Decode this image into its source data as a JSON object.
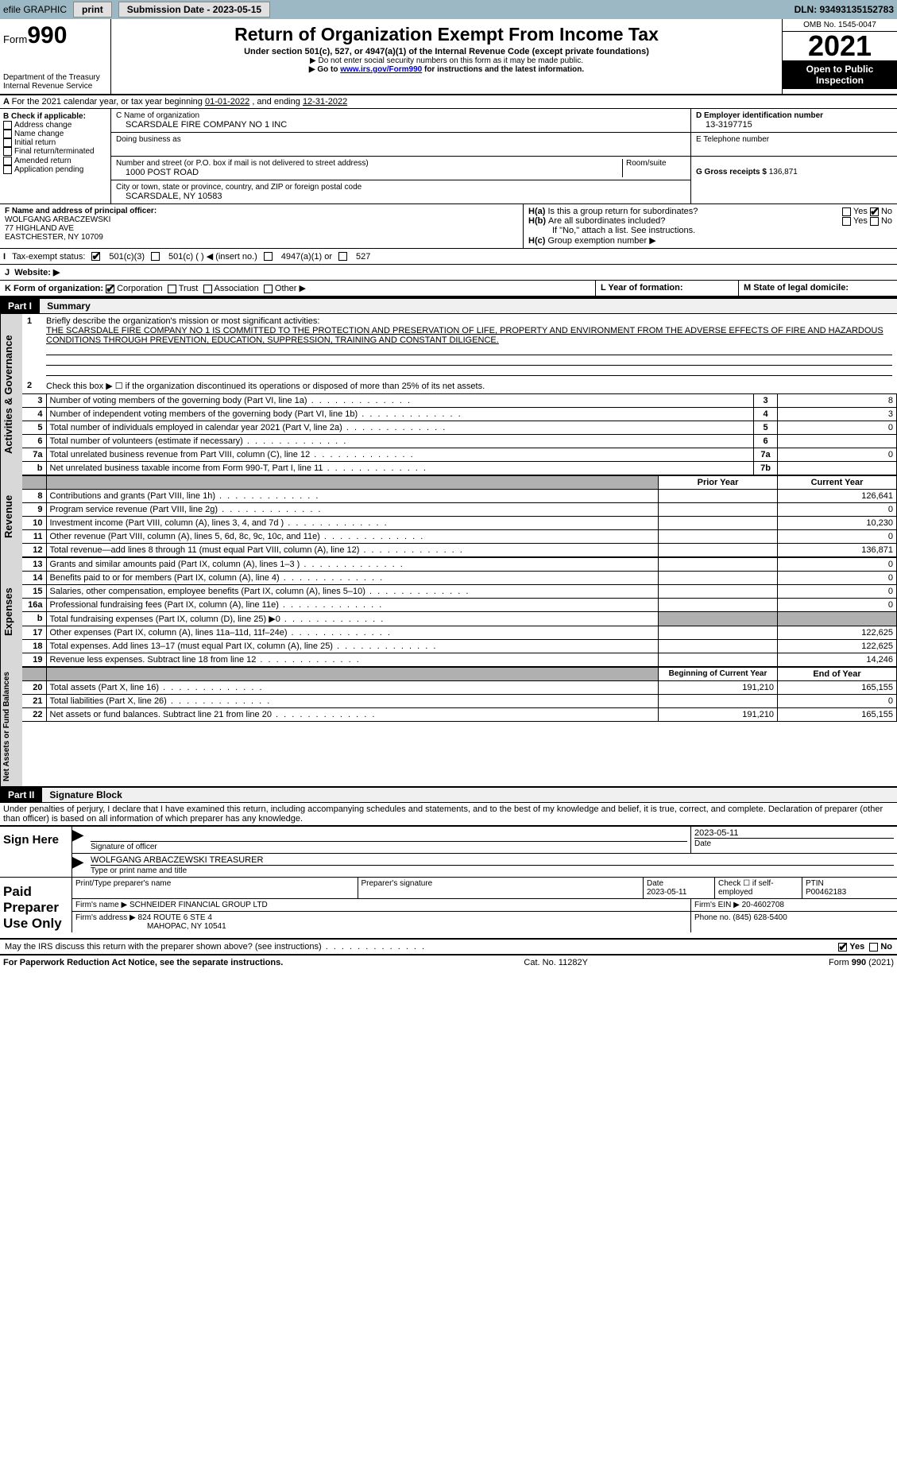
{
  "topbar": {
    "efile": "efile GRAPHIC",
    "print": "print",
    "subdate_label": "Submission Date - 2023-05-15",
    "dln": "DLN: 93493135152783"
  },
  "header": {
    "form_prefix": "Form",
    "form_num": "990",
    "title": "Return of Organization Exempt From Income Tax",
    "subtitle": "Under section 501(c), 527, or 4947(a)(1) of the Internal Revenue Code (except private foundations)",
    "note1": "▶ Do not enter social security numbers on this form as it may be made public.",
    "note2_pre": "▶ Go to ",
    "note2_link": "www.irs.gov/Form990",
    "note2_post": " for instructions and the latest information.",
    "dept": "Department of the Treasury",
    "irs": "Internal Revenue Service",
    "omb": "OMB No. 1545-0047",
    "year": "2021",
    "inspect": "Open to Public Inspection"
  },
  "sectionA": {
    "text_pre": "For the 2021 calendar year, or tax year beginning ",
    "begin": "01-01-2022",
    "mid": " , and ending ",
    "end": "12-31-2022"
  },
  "boxB": {
    "label": "B Check if applicable:",
    "items": [
      "Address change",
      "Name change",
      "Initial return",
      "Final return/terminated",
      "Amended return",
      "Application pending"
    ]
  },
  "boxC": {
    "name_label": "C Name of organization",
    "name": "SCARSDALE FIRE COMPANY NO 1 INC",
    "dba_label": "Doing business as",
    "street_label": "Number and street (or P.O. box if mail is not delivered to street address)",
    "room_label": "Room/suite",
    "street": "1000 POST ROAD",
    "city_label": "City or town, state or province, country, and ZIP or foreign postal code",
    "city": "SCARSDALE, NY  10583"
  },
  "boxD": {
    "label": "D Employer identification number",
    "value": "13-3197715"
  },
  "boxE": {
    "label": "E Telephone number",
    "value": ""
  },
  "boxG": {
    "label": "G Gross receipts $",
    "value": "136,871"
  },
  "boxF": {
    "label": "F  Name and address of principal officer:",
    "name": "WOLFGANG ARBACZEWSKI",
    "addr1": "77 HIGHLAND AVE",
    "addr2": "EASTCHESTER, NY  10709"
  },
  "boxH": {
    "a": "Is this a group return for subordinates?",
    "b": "Are all subordinates included?",
    "b_note": "If \"No,\" attach a list. See instructions.",
    "c": "Group exemption number ▶",
    "yes": "Yes",
    "no": "No"
  },
  "boxI": {
    "label": "Tax-exempt status:",
    "opts": [
      "501(c)(3)",
      "501(c) (   ) ◀ (insert no.)",
      "4947(a)(1) or",
      "527"
    ]
  },
  "boxJ": {
    "label": "Website: ▶"
  },
  "boxK": {
    "label": "K Form of organization:",
    "opts": [
      "Corporation",
      "Trust",
      "Association",
      "Other ▶"
    ]
  },
  "boxL": {
    "label": "L Year of formation:"
  },
  "boxM": {
    "label": "M State of legal domicile:"
  },
  "part1": {
    "hdr": "Part I",
    "title": "Summary",
    "line1_label": "Briefly describe the organization's mission or most significant activities:",
    "mission": "THE SCARSDALE FIRE COMPANY NO 1 IS COMMITTED TO THE PROTECTION AND PRESERVATION OF LIFE, PROPERTY AND ENVIRONMENT FROM THE ADVERSE EFFECTS OF FIRE AND HAZARDOUS CONDITIONS THROUGH PREVENTION, EDUCATION, SUPPRESSION, TRAINING AND CONSTANT DILIGENCE.",
    "line2": "Check this box ▶ ☐ if the organization discontinued its operations or disposed of more than 25% of its net assets.",
    "vlab_gov": "Activities & Governance",
    "vlab_rev": "Revenue",
    "vlab_exp": "Expenses",
    "vlab_net": "Net Assets or Fund Balances",
    "rows_gov": [
      {
        "n": "3",
        "t": "Number of voting members of the governing body (Part VI, line 1a)",
        "box": "3",
        "v": "8"
      },
      {
        "n": "4",
        "t": "Number of independent voting members of the governing body (Part VI, line 1b)",
        "box": "4",
        "v": "3"
      },
      {
        "n": "5",
        "t": "Total number of individuals employed in calendar year 2021 (Part V, line 2a)",
        "box": "5",
        "v": "0"
      },
      {
        "n": "6",
        "t": "Total number of volunteers (estimate if necessary)",
        "box": "6",
        "v": ""
      },
      {
        "n": "7a",
        "t": "Total unrelated business revenue from Part VIII, column (C), line 12",
        "box": "7a",
        "v": "0"
      },
      {
        "n": "b",
        "t": "Net unrelated business taxable income from Form 990-T, Part I, line 11",
        "box": "7b",
        "v": ""
      }
    ],
    "col_prior": "Prior Year",
    "col_curr": "Current Year",
    "rows_rev": [
      {
        "n": "8",
        "t": "Contributions and grants (Part VIII, line 1h)",
        "p": "",
        "c": "126,641"
      },
      {
        "n": "9",
        "t": "Program service revenue (Part VIII, line 2g)",
        "p": "",
        "c": "0"
      },
      {
        "n": "10",
        "t": "Investment income (Part VIII, column (A), lines 3, 4, and 7d )",
        "p": "",
        "c": "10,230"
      },
      {
        "n": "11",
        "t": "Other revenue (Part VIII, column (A), lines 5, 6d, 8c, 9c, 10c, and 11e)",
        "p": "",
        "c": "0"
      },
      {
        "n": "12",
        "t": "Total revenue—add lines 8 through 11 (must equal Part VIII, column (A), line 12)",
        "p": "",
        "c": "136,871"
      }
    ],
    "rows_exp": [
      {
        "n": "13",
        "t": "Grants and similar amounts paid (Part IX, column (A), lines 1–3 )",
        "p": "",
        "c": "0"
      },
      {
        "n": "14",
        "t": "Benefits paid to or for members (Part IX, column (A), line 4)",
        "p": "",
        "c": "0"
      },
      {
        "n": "15",
        "t": "Salaries, other compensation, employee benefits (Part IX, column (A), lines 5–10)",
        "p": "",
        "c": "0"
      },
      {
        "n": "16a",
        "t": "Professional fundraising fees (Part IX, column (A), line 11e)",
        "p": "",
        "c": "0"
      },
      {
        "n": "b",
        "t": "Total fundraising expenses (Part IX, column (D), line 25) ▶0",
        "p": "shade",
        "c": "shade"
      },
      {
        "n": "17",
        "t": "Other expenses (Part IX, column (A), lines 11a–11d, 11f–24e)",
        "p": "",
        "c": "122,625"
      },
      {
        "n": "18",
        "t": "Total expenses. Add lines 13–17 (must equal Part IX, column (A), line 25)",
        "p": "",
        "c": "122,625"
      },
      {
        "n": "19",
        "t": "Revenue less expenses. Subtract line 18 from line 12",
        "p": "",
        "c": "14,246"
      }
    ],
    "col_beg": "Beginning of Current Year",
    "col_end": "End of Year",
    "rows_net": [
      {
        "n": "20",
        "t": "Total assets (Part X, line 16)",
        "p": "191,210",
        "c": "165,155"
      },
      {
        "n": "21",
        "t": "Total liabilities (Part X, line 26)",
        "p": "",
        "c": "0"
      },
      {
        "n": "22",
        "t": "Net assets or fund balances. Subtract line 21 from line 20",
        "p": "191,210",
        "c": "165,155"
      }
    ]
  },
  "part2": {
    "hdr": "Part II",
    "title": "Signature Block",
    "decl": "Under penalties of perjury, I declare that I have examined this return, including accompanying schedules and statements, and to the best of my knowledge and belief, it is true, correct, and complete. Declaration of preparer (other than officer) is based on all information of which preparer has any knowledge."
  },
  "sign": {
    "label": "Sign Here",
    "sig_of_officer": "Signature of officer",
    "date": "Date",
    "date_val": "2023-05-11",
    "name": "WOLFGANG ARBACZEWSKI TREASURER",
    "name_label": "Type or print name and title"
  },
  "prep": {
    "label": "Paid Preparer Use Only",
    "print_label": "Print/Type preparer's name",
    "sig_label": "Preparer's signature",
    "date_label": "Date",
    "date_val": "2023-05-11",
    "check_label": "Check ☐ if self-employed",
    "ptin_label": "PTIN",
    "ptin": "P00462183",
    "firm_name_label": "Firm's name    ▶",
    "firm_name": "SCHNEIDER FINANCIAL GROUP LTD",
    "firm_ein_label": "Firm's EIN ▶",
    "firm_ein": "20-4602708",
    "firm_addr_label": "Firm's address ▶",
    "firm_addr1": "824 ROUTE 6 STE 4",
    "firm_addr2": "MAHOPAC, NY  10541",
    "phone_label": "Phone no.",
    "phone": "(845) 628-5400"
  },
  "discuss": {
    "text": "May the IRS discuss this return with the preparer shown above? (see instructions)",
    "yes": "Yes",
    "no": "No"
  },
  "footer": {
    "left": "For Paperwork Reduction Act Notice, see the separate instructions.",
    "mid": "Cat. No. 11282Y",
    "right_pre": "Form ",
    "right_bold": "990",
    "right_post": " (2021)"
  }
}
